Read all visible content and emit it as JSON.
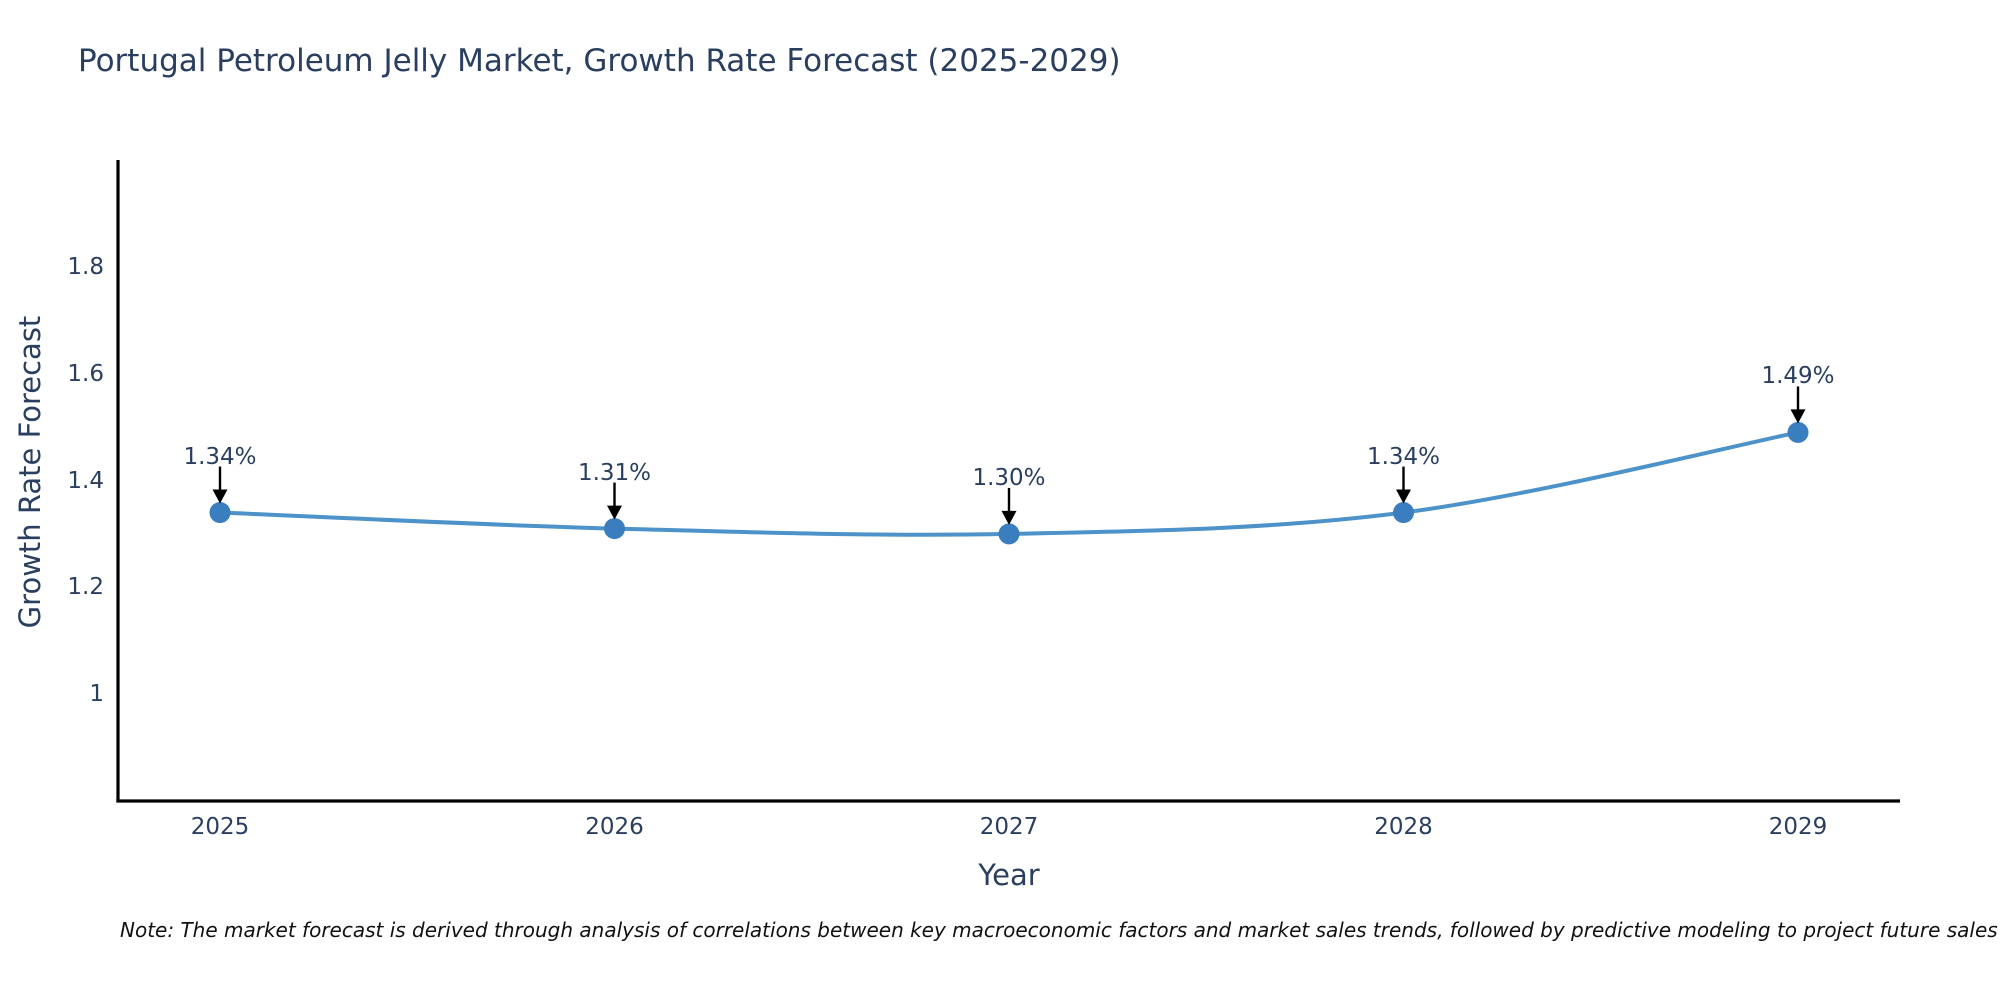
{
  "note": "Note: The market forecast is derived through analysis of correlations between key macroeconomic factors and market sales trends, followed by predictive modeling to project future sales",
  "chart_data": {
    "type": "line",
    "title": "Portugal Petroleum Jelly Market, Growth Rate Forecast (2025-2029)",
    "xlabel": "Year",
    "ylabel": "Growth Rate Forecast",
    "categories": [
      "2025",
      "2026",
      "2027",
      "2028",
      "2029"
    ],
    "series": [
      {
        "name": "Growth Rate Forecast",
        "values": [
          1.34,
          1.31,
          1.3,
          1.34,
          1.49
        ]
      }
    ],
    "point_labels": [
      "1.34%",
      "1.31%",
      "1.30%",
      "1.34%",
      "1.49%"
    ],
    "ytick_values": [
      1,
      1.2,
      1.4,
      1.6,
      1.8
    ],
    "ytick_labels": [
      "1",
      "1.2",
      "1.4",
      "1.6",
      "1.8"
    ],
    "ylim": [
      0.8,
      2.0
    ],
    "grid": false,
    "legend": "none",
    "annotation_arrows": true,
    "colors": {
      "line": "#4d92c8",
      "marker": "#3a7ebf",
      "axis": "#000000",
      "text": "#2a3f5f",
      "arrow": "#000000",
      "note_text": "#111111",
      "background": "#ffffff"
    }
  }
}
